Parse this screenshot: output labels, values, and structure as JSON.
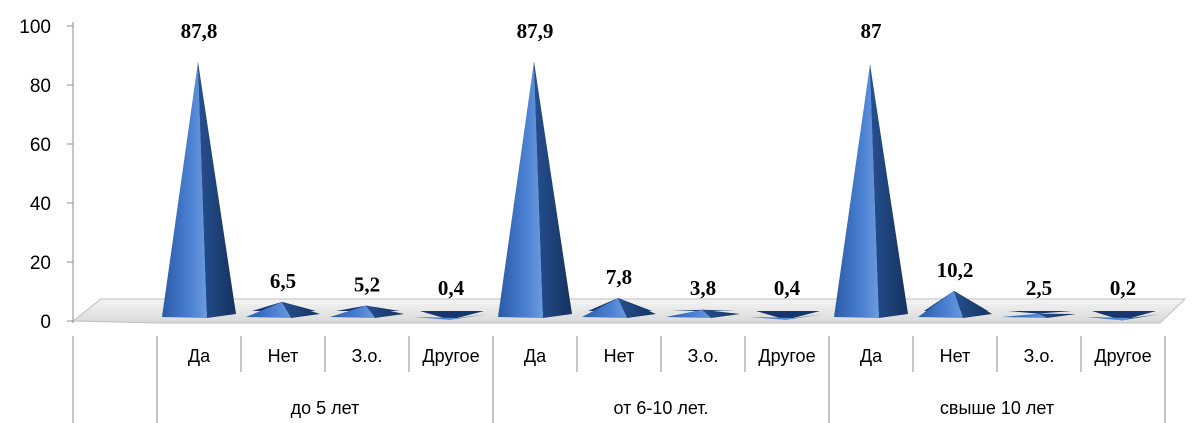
{
  "chart_data": {
    "type": "bar",
    "style": "3d-pyramid",
    "title": "",
    "xlabel": "",
    "ylabel": "",
    "ylim": [
      0,
      100
    ],
    "yticks": [
      "0",
      "20",
      "40",
      "60",
      "80",
      "100"
    ],
    "groups": [
      {
        "label": "до 5 лет",
        "categories": [
          "Да",
          "Нет",
          "З.о.",
          "Другое"
        ],
        "values": [
          87.8,
          6.5,
          5.2,
          0.4
        ],
        "data_labels": [
          "87,8",
          "6,5",
          "5,2",
          "0,4"
        ]
      },
      {
        "label": "от 6-10 лет.",
        "categories": [
          "Да",
          "Нет",
          "З.о.",
          "Другое"
        ],
        "values": [
          87.9,
          7.8,
          3.8,
          0.4
        ],
        "data_labels": [
          "87,9",
          "7,8",
          "3,8",
          "0,4"
        ]
      },
      {
        "label": "свыше 10 лет",
        "categories": [
          "Да",
          "Нет",
          "З.о.",
          "Другое"
        ],
        "values": [
          87,
          10.2,
          2.5,
          0.2
        ],
        "data_labels": [
          "87",
          "10,2",
          "2,5",
          "0,2"
        ]
      }
    ],
    "grid": false,
    "legend": "none",
    "colors": {
      "bar_light": "#5b8ad6",
      "bar_mid": "#2f5fae",
      "bar_dark": "#1a3a78",
      "floor": "#e6e6e6"
    }
  }
}
